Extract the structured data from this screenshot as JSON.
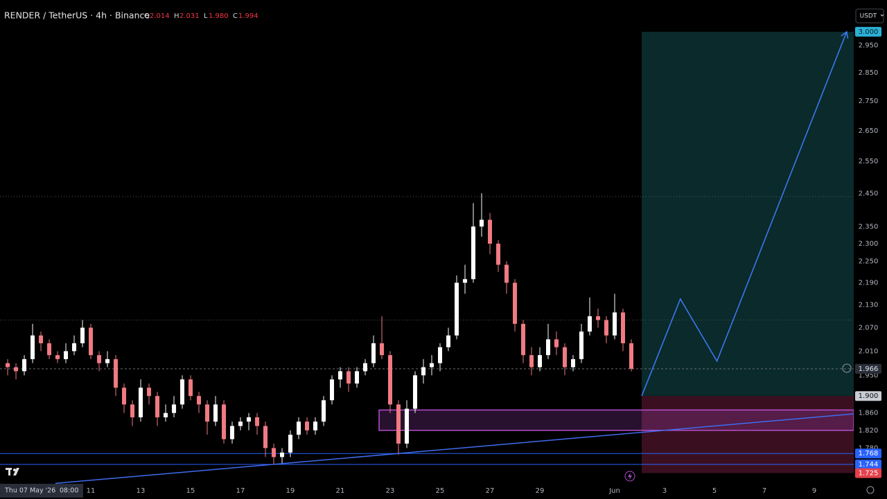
{
  "header": {
    "title": "RENDER / TetherUS · 4h · Binance",
    "ohlc": [
      [
        "O",
        "2.014"
      ],
      [
        "H",
        "2.031"
      ],
      [
        "L",
        "1.980"
      ],
      [
        "C",
        "1.994"
      ]
    ],
    "currency": "USDT"
  },
  "chart_data": {
    "type": "candlestick",
    "log_scale": true,
    "grid": false,
    "up_color": "#ffffff",
    "down_color": "#f07b82",
    "xlim": [
      -0.92,
      101.75
    ],
    "ylim": [
      1.705,
      3.122
    ],
    "xticks": [
      {
        "value": 10,
        "label": "11"
      },
      {
        "value": 16,
        "label": "13"
      },
      {
        "value": 22,
        "label": "15"
      },
      {
        "value": 28,
        "label": "17"
      },
      {
        "value": 34,
        "label": "19"
      },
      {
        "value": 40,
        "label": "21"
      },
      {
        "value": 46,
        "label": "23"
      },
      {
        "value": 52,
        "label": "25"
      },
      {
        "value": 58,
        "label": "27"
      },
      {
        "value": 64,
        "label": "29"
      },
      {
        "value": 73,
        "label": "Jun"
      },
      {
        "value": 79,
        "label": "3"
      },
      {
        "value": 85,
        "label": "5"
      },
      {
        "value": 91,
        "label": "7"
      },
      {
        "value": 97,
        "label": "9"
      }
    ],
    "crosshair_label": [
      "Thu 07 May '26",
      "08:00"
    ],
    "yticks": [
      {
        "value": 2.95,
        "label": "2.950"
      },
      {
        "value": 2.85,
        "label": "2.850"
      },
      {
        "value": 2.75,
        "label": "2.750"
      },
      {
        "value": 2.65,
        "label": "2.650"
      },
      {
        "value": 2.55,
        "label": "2.550"
      },
      {
        "value": 2.45,
        "label": "2.450"
      },
      {
        "value": 2.35,
        "label": "2.350"
      },
      {
        "value": 2.3,
        "label": "2.300"
      },
      {
        "value": 2.25,
        "label": "2.250"
      },
      {
        "value": 2.19,
        "label": "2.190"
      },
      {
        "value": 2.13,
        "label": "2.130"
      },
      {
        "value": 2.07,
        "label": "2.070"
      },
      {
        "value": 2.01,
        "label": "2.010"
      },
      {
        "value": 1.95,
        "label": "1.950"
      },
      {
        "value": 1.86,
        "label": "1.860"
      },
      {
        "value": 1.82,
        "label": "1.820"
      },
      {
        "value": 1.78,
        "label": "1.780"
      }
    ],
    "candles": [
      [
        1.98,
        1.99,
        1.95,
        1.97
      ],
      [
        1.97,
        1.98,
        1.94,
        1.96
      ],
      [
        1.96,
        2.0,
        1.95,
        1.99
      ],
      [
        1.99,
        2.08,
        1.98,
        2.05
      ],
      [
        2.05,
        2.06,
        2.01,
        2.03
      ],
      [
        2.03,
        2.04,
        1.99,
        2.0
      ],
      [
        2.0,
        2.01,
        1.98,
        1.99
      ],
      [
        1.99,
        2.03,
        1.98,
        2.01
      ],
      [
        2.01,
        2.05,
        2.0,
        2.03
      ],
      [
        2.03,
        2.09,
        2.02,
        2.07
      ],
      [
        2.07,
        2.08,
        1.99,
        2.0
      ],
      [
        2.0,
        2.01,
        1.96,
        1.98
      ],
      [
        1.98,
        2.01,
        1.97,
        1.99
      ],
      [
        1.99,
        2.0,
        1.9,
        1.92
      ],
      [
        1.92,
        1.93,
        1.86,
        1.88
      ],
      [
        1.88,
        1.89,
        1.83,
        1.85
      ],
      [
        1.85,
        1.94,
        1.84,
        1.92
      ],
      [
        1.92,
        1.93,
        1.88,
        1.9
      ],
      [
        1.9,
        1.91,
        1.83,
        1.85
      ],
      [
        1.85,
        1.88,
        1.84,
        1.86
      ],
      [
        1.86,
        1.9,
        1.85,
        1.88
      ],
      [
        1.88,
        1.95,
        1.87,
        1.94
      ],
      [
        1.94,
        1.95,
        1.89,
        1.9
      ],
      [
        1.9,
        1.91,
        1.86,
        1.88
      ],
      [
        1.88,
        1.89,
        1.81,
        1.84
      ],
      [
        1.84,
        1.9,
        1.83,
        1.88
      ],
      [
        1.88,
        1.89,
        1.79,
        1.8
      ],
      [
        1.8,
        1.84,
        1.79,
        1.83
      ],
      [
        1.83,
        1.85,
        1.82,
        1.84
      ],
      [
        1.84,
        1.86,
        1.82,
        1.85
      ],
      [
        1.85,
        1.86,
        1.81,
        1.83
      ],
      [
        1.83,
        1.84,
        1.76,
        1.78
      ],
      [
        1.78,
        1.79,
        1.745,
        1.76
      ],
      [
        1.76,
        1.78,
        1.745,
        1.77
      ],
      [
        1.77,
        1.82,
        1.76,
        1.81
      ],
      [
        1.81,
        1.85,
        1.8,
        1.84
      ],
      [
        1.84,
        1.85,
        1.81,
        1.82
      ],
      [
        1.82,
        1.85,
        1.81,
        1.84
      ],
      [
        1.84,
        1.9,
        1.83,
        1.89
      ],
      [
        1.89,
        1.95,
        1.88,
        1.94
      ],
      [
        1.94,
        1.97,
        1.92,
        1.96
      ],
      [
        1.96,
        1.97,
        1.91,
        1.93
      ],
      [
        1.93,
        1.97,
        1.92,
        1.96
      ],
      [
        1.96,
        1.99,
        1.95,
        1.98
      ],
      [
        1.98,
        2.05,
        1.97,
        2.03
      ],
      [
        2.03,
        2.1,
        1.99,
        2.0
      ],
      [
        2.0,
        2.01,
        1.86,
        1.88
      ],
      [
        1.88,
        1.89,
        1.765,
        1.79
      ],
      [
        1.79,
        1.89,
        1.78,
        1.87
      ],
      [
        1.87,
        1.96,
        1.86,
        1.95
      ],
      [
        1.95,
        1.99,
        1.93,
        1.97
      ],
      [
        1.97,
        2.0,
        1.95,
        1.98
      ],
      [
        1.98,
        2.03,
        1.96,
        2.02
      ],
      [
        2.02,
        2.07,
        2.01,
        2.05
      ],
      [
        2.05,
        2.21,
        2.04,
        2.19
      ],
      [
        2.19,
        2.24,
        2.16,
        2.2
      ],
      [
        2.2,
        2.42,
        2.19,
        2.35
      ],
      [
        2.35,
        2.45,
        2.32,
        2.37
      ],
      [
        2.37,
        2.39,
        2.27,
        2.3
      ],
      [
        2.3,
        2.31,
        2.22,
        2.24
      ],
      [
        2.24,
        2.25,
        2.16,
        2.19
      ],
      [
        2.19,
        2.2,
        2.06,
        2.08
      ],
      [
        2.08,
        2.09,
        1.98,
        2.0
      ],
      [
        2.0,
        2.02,
        1.95,
        1.97
      ],
      [
        1.97,
        2.02,
        1.96,
        2.0
      ],
      [
        2.0,
        2.08,
        1.99,
        2.04
      ],
      [
        2.04,
        2.06,
        2.0,
        2.02
      ],
      [
        2.02,
        2.03,
        1.95,
        1.97
      ],
      [
        1.97,
        2.0,
        1.96,
        1.99
      ],
      [
        1.99,
        2.08,
        1.98,
        2.06
      ],
      [
        2.06,
        2.15,
        2.05,
        2.1
      ],
      [
        2.1,
        2.12,
        2.07,
        2.09
      ],
      [
        2.09,
        2.1,
        2.03,
        2.05
      ],
      [
        2.05,
        2.16,
        2.04,
        2.11
      ],
      [
        2.11,
        2.12,
        2.01,
        2.03
      ],
      [
        2.03,
        2.04,
        1.96,
        1.966
      ]
    ],
    "levels": {
      "values": [
        2.44,
        2.09
      ],
      "color": "#5a5a5a"
    },
    "position": {
      "start": 76.25,
      "end": 101.75,
      "target": 3.0,
      "entry": 1.9,
      "stop": 1.725,
      "profit_color": "#0a2a2b",
      "loss_color": "#3a1020"
    },
    "zone": {
      "start": 44.67,
      "end": 101.75,
      "top": 1.867,
      "bottom": 1.82,
      "color": "#b84fd0"
    },
    "trendline": {
      "x": [
        5.75,
        101.75
      ],
      "y": [
        1.703,
        1.858
      ],
      "color": "#3f6cf0"
    },
    "projection": {
      "x": [
        76.25,
        80.9,
        85.3,
        100.9
      ],
      "y": [
        1.9,
        2.146,
        1.985,
        3.0
      ],
      "color": "#3a78f0"
    },
    "price_tags": [
      {
        "value": 3.0,
        "label": "3.000",
        "color": "#2bb0d6",
        "text_color": "#0b1d24",
        "line": "none"
      },
      {
        "value": 1.966,
        "label": "1.966",
        "color": "#2a2e39",
        "text_color": "#e0e3eb",
        "line": "dashed"
      },
      {
        "value": 1.9,
        "label": "1.900",
        "color": "#c9ccd4",
        "text_color": "#111111",
        "line": "none"
      },
      {
        "value": 1.768,
        "label": "1.768",
        "color": "#2962ff",
        "text_color": "#ffffff",
        "line": "solid"
      },
      {
        "value": 1.744,
        "label": "1.744",
        "color": "#2962ff",
        "text_color": "#ffffff",
        "line": "solid"
      },
      {
        "value": 1.725,
        "label": "1.725",
        "color": "#e5404b",
        "text_color": "#ffffff",
        "line": "none"
      }
    ]
  }
}
